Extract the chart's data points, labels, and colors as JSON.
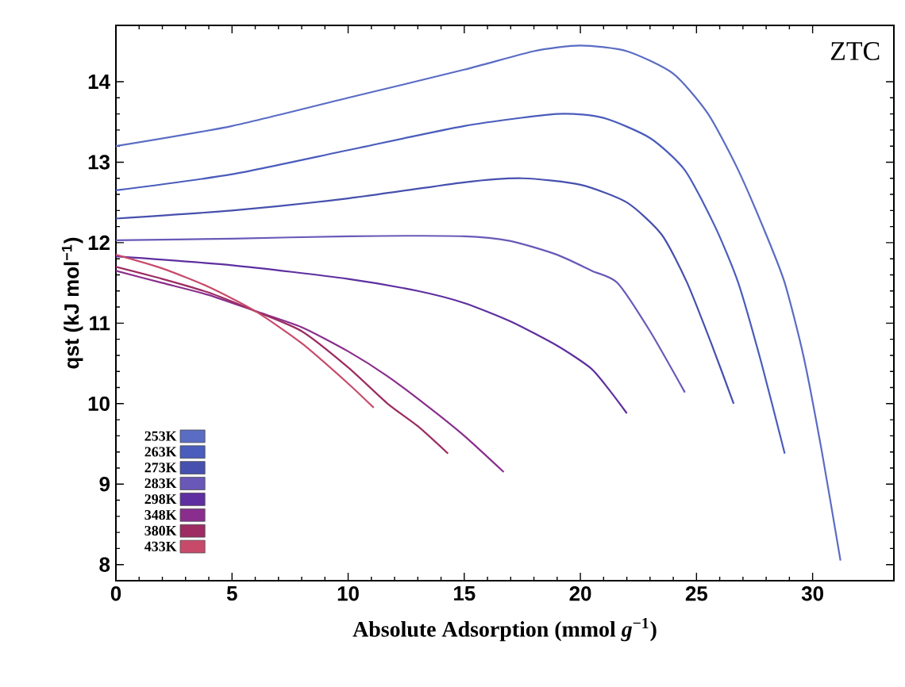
{
  "chart_data": {
    "type": "line",
    "xlabel": "Absolute Adsorption (mmol *g*$^{−1}$)",
    "ylabel": "qst (kJ mol$^{−1}$)",
    "annotations": [
      "ZTC"
    ],
    "xlim": [
      0,
      33.5
    ],
    "ylim": [
      7.8,
      14.7
    ],
    "xticks": [
      0,
      5,
      10,
      15,
      20,
      25,
      30
    ],
    "yticks": [
      8,
      9,
      10,
      11,
      12,
      13,
      14
    ],
    "grid": false,
    "legend": "bottom left",
    "marker": "none",
    "line_style": "solid",
    "series": [
      {
        "name": "253K",
        "color": "#5a6cc4",
        "x": [
          0,
          5,
          10,
          15,
          18,
          20,
          22,
          24,
          25.5,
          26.8,
          28,
          28.8,
          29.6,
          30.4,
          31.2
        ],
        "values": [
          13.2,
          13.45,
          13.8,
          14.15,
          14.38,
          14.45,
          14.38,
          14.1,
          13.6,
          12.9,
          12.1,
          11.5,
          10.6,
          9.4,
          8.05
        ]
      },
      {
        "name": "263K",
        "color": "#4a5cbc",
        "x": [
          0,
          5,
          10,
          15,
          19,
          21,
          23,
          24.5,
          25.8,
          26.8,
          27.8,
          28.8
        ],
        "values": [
          12.65,
          12.85,
          13.15,
          13.45,
          13.6,
          13.55,
          13.3,
          12.9,
          12.2,
          11.5,
          10.5,
          9.38
        ]
      },
      {
        "name": "273K",
        "color": "#4650ae",
        "x": [
          0,
          5,
          10,
          15,
          17.5,
          20,
          22,
          23.5,
          24.6,
          25.7,
          26.6
        ],
        "values": [
          12.3,
          12.4,
          12.55,
          12.75,
          12.8,
          12.72,
          12.5,
          12.1,
          11.5,
          10.7,
          10.0
        ]
      },
      {
        "name": "283K",
        "color": "#6a58b8",
        "x": [
          0,
          5,
          10,
          15,
          17,
          19,
          20.5,
          21.6,
          23,
          24.5
        ],
        "values": [
          12.03,
          12.05,
          12.08,
          12.08,
          12.02,
          11.85,
          11.65,
          11.5,
          10.9,
          10.14
        ]
      },
      {
        "name": "298K",
        "color": "#5e2fa0",
        "x": [
          0,
          5,
          10,
          13,
          15,
          17,
          19,
          20.45,
          21.3,
          22
        ],
        "values": [
          11.83,
          11.72,
          11.55,
          11.4,
          11.25,
          11.02,
          10.72,
          10.44,
          10.15,
          9.88
        ]
      },
      {
        "name": "348K",
        "color": "#8a2e8e",
        "x": [
          0,
          2,
          4,
          6,
          8,
          10,
          11.7,
          13.5,
          15,
          16.7
        ],
        "values": [
          11.65,
          11.5,
          11.35,
          11.15,
          10.95,
          10.65,
          10.34,
          9.95,
          9.6,
          9.15
        ]
      },
      {
        "name": "380K",
        "color": "#9c2c62",
        "x": [
          0,
          2,
          4,
          6,
          8,
          10,
          11.7,
          13,
          14.3
        ],
        "values": [
          11.7,
          11.55,
          11.38,
          11.15,
          10.9,
          10.45,
          10.0,
          9.72,
          9.38
        ]
      },
      {
        "name": "433K",
        "color": "#c84a6a",
        "x": [
          0,
          2,
          4,
          6,
          8,
          10,
          11.1
        ],
        "values": [
          11.85,
          11.68,
          11.45,
          11.15,
          10.75,
          10.25,
          9.95
        ]
      }
    ]
  }
}
